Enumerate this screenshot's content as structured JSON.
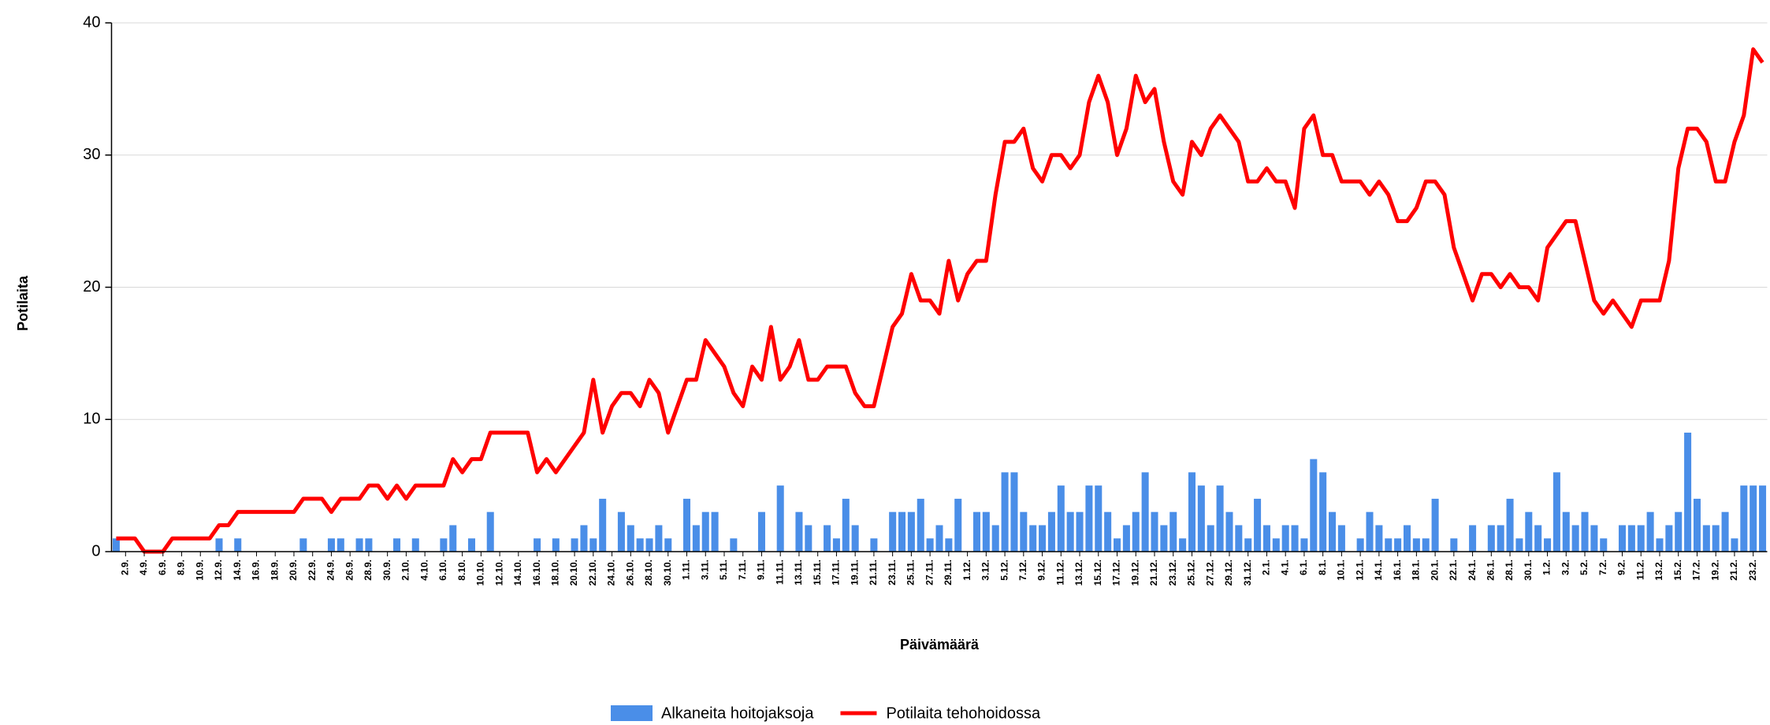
{
  "chart_data": {
    "type": "combo",
    "y_label": "Potilaita",
    "x_label": "Päivämäärä",
    "categories": [
      null,
      "2.9.",
      null,
      "4.9.",
      null,
      "6.9.",
      null,
      "8.9.",
      null,
      "10.9.",
      null,
      "12.9.",
      null,
      "14.9.",
      null,
      "16.9.",
      null,
      "18.9.",
      null,
      "20.9.",
      null,
      "22.9.",
      null,
      "24.9.",
      null,
      "26.9.",
      null,
      "28.9.",
      null,
      "30.9.",
      null,
      "2.10.",
      null,
      "4.10.",
      null,
      "6.10.",
      null,
      "8.10.",
      null,
      "10.10.",
      null,
      "12.10.",
      null,
      "14.10.",
      null,
      "16.10.",
      null,
      "18.10.",
      null,
      "20.10.",
      null,
      "22.10.",
      null,
      "24.10.",
      null,
      "26.10.",
      null,
      "28.10.",
      null,
      "30.10.",
      null,
      "1.11.",
      null,
      "3.11.",
      null,
      "5.11.",
      null,
      "7.11.",
      null,
      "9.11.",
      null,
      "11.11.",
      null,
      "13.11.",
      null,
      "15.11.",
      null,
      "17.11.",
      null,
      "19.11.",
      null,
      "21.11.",
      null,
      "23.11.",
      null,
      "25.11.",
      null,
      "27.11.",
      null,
      "29.11.",
      null,
      "1.12.",
      null,
      "3.12.",
      null,
      "5.12.",
      null,
      "7.12.",
      null,
      "9.12.",
      null,
      "11.12.",
      null,
      "13.12.",
      null,
      "15.12.",
      null,
      "17.12.",
      null,
      "19.12.",
      null,
      "21.12.",
      null,
      "23.12.",
      null,
      "25.12.",
      null,
      "27.12.",
      null,
      "29.12.",
      null,
      "31.12.",
      null,
      "2.1.",
      null,
      "4.1.",
      null,
      "6.1.",
      null,
      "8.1.",
      null,
      "10.1.",
      null,
      "12.1.",
      null,
      "14.1.",
      null,
      "16.1.",
      null,
      "18.1.",
      null,
      "20.1.",
      null,
      "22.1.",
      null,
      "24.1.",
      null,
      "26.1.",
      null,
      "28.1.",
      null,
      "30.1.",
      null,
      "1.2.",
      null,
      "3.2.",
      null,
      "5.2.",
      null,
      "7.2.",
      null,
      "9.2.",
      null,
      "11.2.",
      null,
      "13.2.",
      null,
      "15.2.",
      null,
      "17.2.",
      null,
      "19.2.",
      null,
      "21.2.",
      null,
      "23.2.",
      null
    ],
    "series": [
      {
        "name": "Alkaneita hoitojaksoja",
        "type": "bar",
        "color": "#4a8ee8",
        "values": [
          1,
          0,
          0,
          0,
          0,
          0,
          0,
          0,
          0,
          0,
          0,
          1,
          0,
          1,
          0,
          0,
          0,
          0,
          0,
          0,
          1,
          0,
          0,
          1,
          1,
          0,
          1,
          1,
          0,
          0,
          1,
          0,
          1,
          0,
          0,
          1,
          2,
          0,
          1,
          0,
          3,
          0,
          0,
          0,
          0,
          1,
          0,
          1,
          0,
          1,
          2,
          1,
          4,
          0,
          3,
          2,
          1,
          1,
          2,
          1,
          0,
          4,
          2,
          3,
          3,
          0,
          1,
          0,
          0,
          3,
          0,
          5,
          0,
          3,
          2,
          0,
          2,
          1,
          4,
          2,
          0,
          1,
          0,
          3,
          3,
          3,
          4,
          1,
          2,
          1,
          4,
          0,
          3,
          3,
          2,
          6,
          6,
          3,
          2,
          2,
          3,
          5,
          3,
          3,
          5,
          5,
          3,
          1,
          2,
          3,
          6,
          3,
          2,
          3,
          1,
          6,
          5,
          2,
          5,
          3,
          2,
          1,
          4,
          2,
          1,
          2,
          2,
          1,
          7,
          6,
          3,
          2,
          0,
          1,
          3,
          2,
          1,
          1,
          2,
          1,
          1,
          4,
          0,
          1,
          0,
          2,
          0,
          2,
          2,
          4,
          1,
          3,
          2,
          1,
          6,
          3,
          2,
          3,
          2,
          1,
          0,
          2,
          2,
          2,
          3,
          1,
          2,
          3,
          9,
          4,
          2,
          2,
          3,
          1,
          5,
          5,
          5
        ]
      },
      {
        "name": "Potilaita tehohoidossa",
        "type": "line",
        "color": "#ff0000",
        "values": [
          1,
          1,
          1,
          0,
          0,
          0,
          1,
          1,
          1,
          1,
          1,
          2,
          2,
          3,
          3,
          3,
          3,
          3,
          3,
          3,
          4,
          4,
          4,
          3,
          4,
          4,
          4,
          5,
          5,
          4,
          5,
          4,
          5,
          5,
          5,
          5,
          7,
          6,
          7,
          7,
          9,
          9,
          9,
          9,
          9,
          6,
          7,
          6,
          7,
          8,
          9,
          13,
          9,
          11,
          12,
          12,
          11,
          13,
          12,
          9,
          11,
          13,
          13,
          16,
          15,
          14,
          12,
          11,
          14,
          13,
          17,
          13,
          14,
          16,
          13,
          13,
          14,
          14,
          14,
          12,
          11,
          11,
          14,
          17,
          18,
          21,
          19,
          19,
          18,
          22,
          19,
          21,
          22,
          22,
          27,
          31,
          31,
          32,
          29,
          28,
          30,
          30,
          29,
          30,
          34,
          36,
          34,
          30,
          32,
          36,
          34,
          35,
          31,
          28,
          27,
          31,
          30,
          32,
          33,
          32,
          31,
          28,
          28,
          29,
          28,
          28,
          26,
          32,
          33,
          30,
          30,
          28,
          28,
          28,
          27,
          28,
          27,
          25,
          25,
          26,
          28,
          28,
          27,
          23,
          21,
          19,
          21,
          21,
          20,
          21,
          20,
          20,
          19,
          23,
          24,
          25,
          25,
          22,
          19,
          18,
          19,
          18,
          17,
          19,
          19,
          19,
          22,
          29,
          32,
          32,
          31,
          28,
          28,
          31,
          33,
          38,
          37
        ]
      }
    ],
    "ylim": [
      0,
      40
    ],
    "yticks": [
      0,
      10,
      20,
      30,
      40
    ],
    "grid": true
  }
}
